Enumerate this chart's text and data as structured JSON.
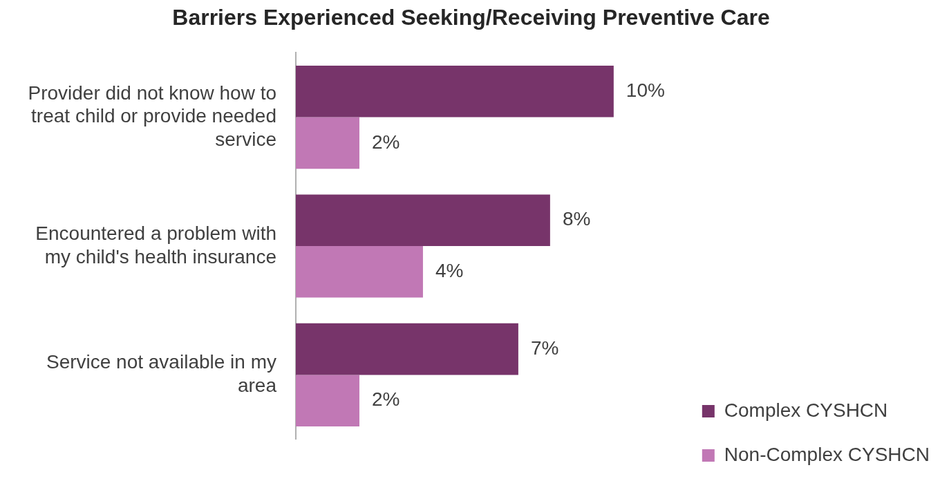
{
  "chart_data": {
    "type": "bar",
    "orientation": "horizontal",
    "title": "Barriers Experienced Seeking/Receiving Preventive Care",
    "categories": [
      "Provider did not know how to treat child or provide needed service",
      "Encountered a problem with my child's health insurance",
      "Service not available in my area"
    ],
    "series": [
      {
        "name": "Complex CYSHCN",
        "color": "#77346a",
        "values": [
          10,
          8,
          7
        ],
        "value_labels": [
          "10%",
          "8%",
          "7%"
        ]
      },
      {
        "name": "Non-Complex CYSHCN",
        "color": "#c178b5",
        "values": [
          2,
          4,
          2
        ],
        "value_labels": [
          "2%",
          "4%",
          "2%"
        ]
      }
    ],
    "legend": "bottom right"
  }
}
